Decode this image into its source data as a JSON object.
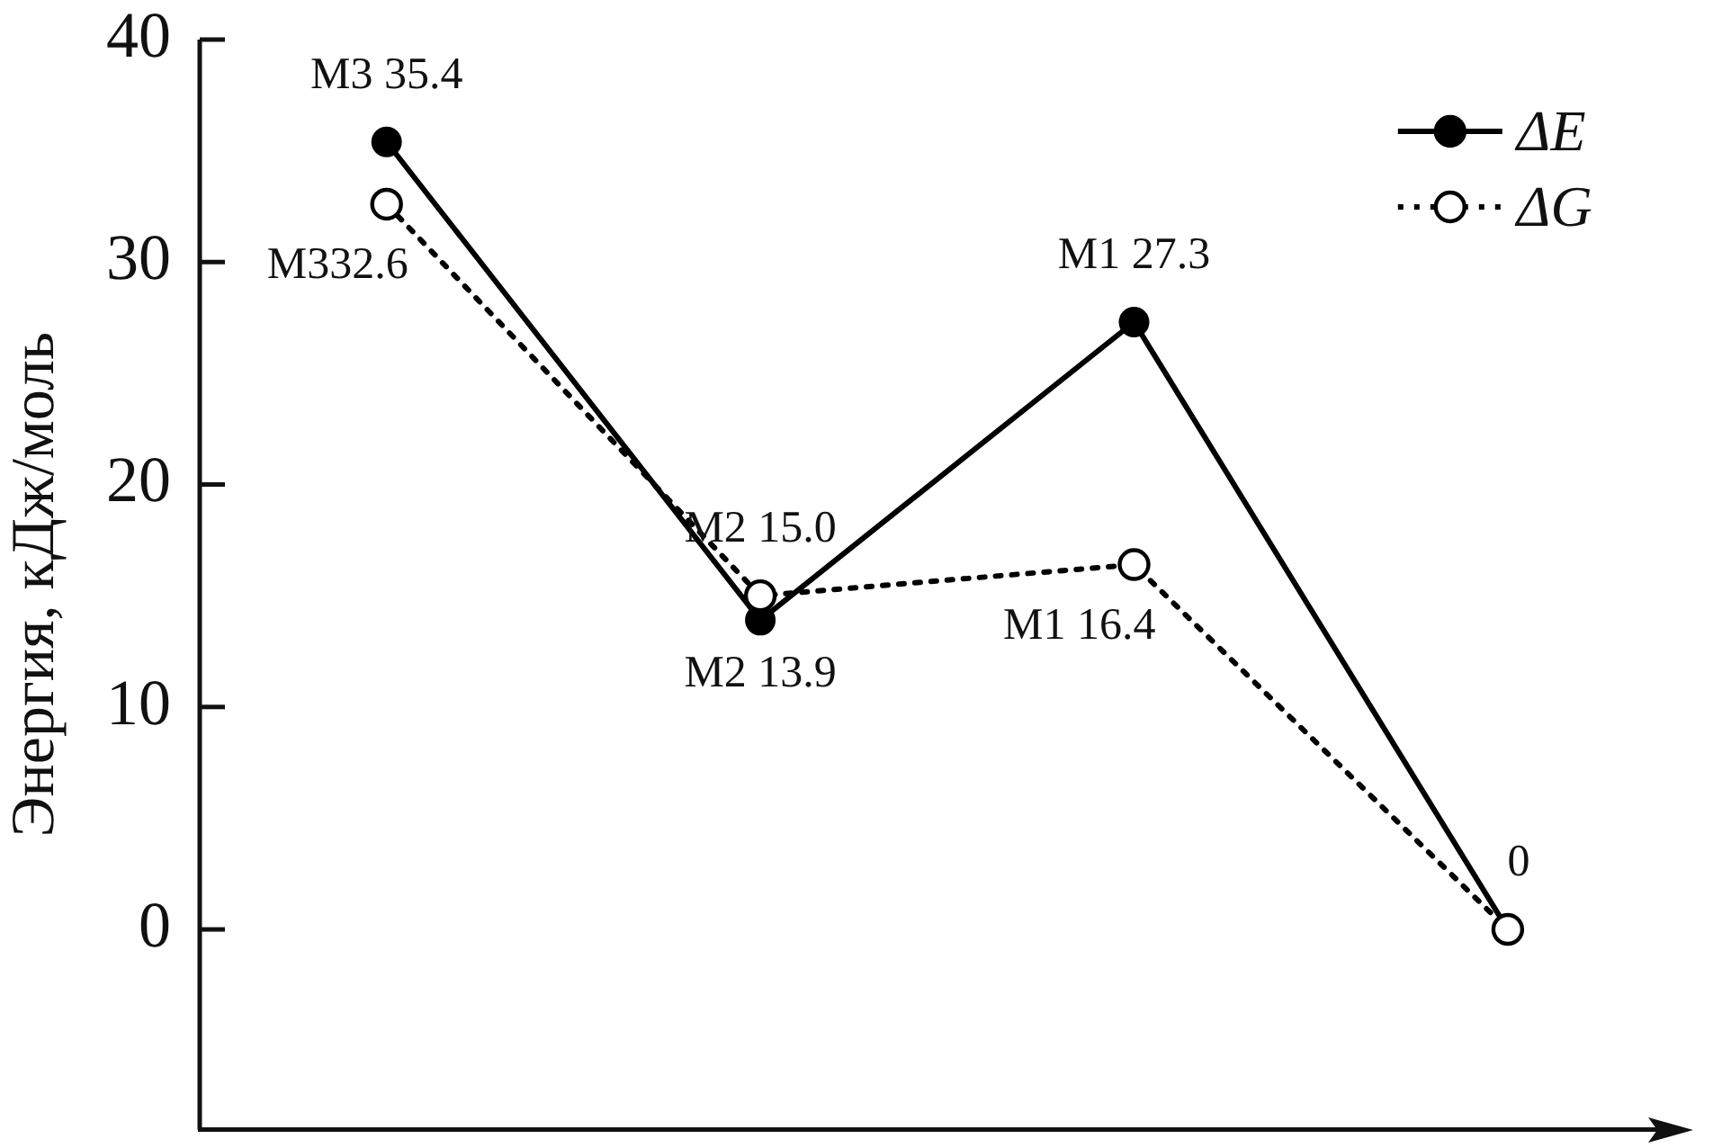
{
  "chart_data": {
    "type": "line",
    "ylabel": "Энергия, кДж/моль",
    "categories": [
      null,
      null,
      null,
      null
    ],
    "series": [
      {
        "name": "ΔE",
        "color": "#000000",
        "values": [
          35.4,
          13.9,
          27.3,
          0
        ],
        "line_style": "solid",
        "marker": "circle",
        "value_labels": [
          "M3 35.4",
          "M2 13.9",
          "M1 27.3",
          "0"
        ]
      },
      {
        "name": "ΔG",
        "color": "#000000",
        "values": [
          32.6,
          15.0,
          16.4,
          0
        ],
        "line_style": "dotted",
        "marker": "circle",
        "value_labels": [
          "M332.6",
          "M2 15.0",
          "M1 16.4",
          null
        ]
      }
    ],
    "ylim": [
      -9,
      40
    ],
    "yticks": [
      0,
      10,
      20,
      30,
      40
    ],
    "legend": "top right"
  }
}
